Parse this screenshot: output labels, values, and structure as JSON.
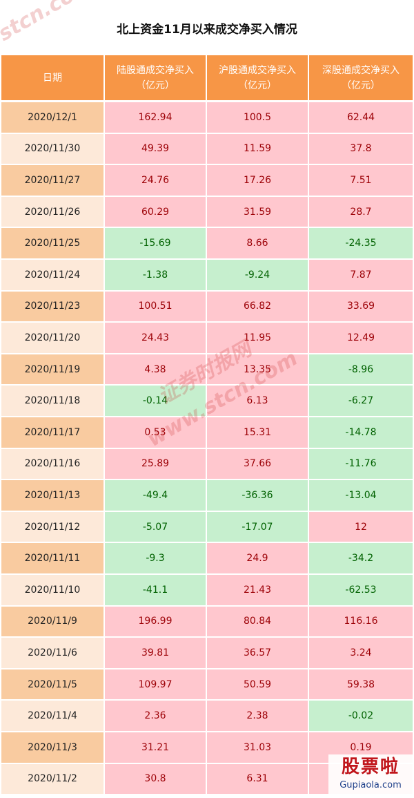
{
  "title": "北上资金11月以来成交净买入情况",
  "table": {
    "header": [
      [
        "日期"
      ],
      [
        "陆股通成交净买入",
        "（亿元）"
      ],
      [
        "沪股通成交净买入",
        "（亿元）"
      ],
      [
        "深股通成交净买入",
        "（亿元）"
      ]
    ],
    "rows": [
      [
        "2020/12/1",
        162.94,
        100.5,
        62.44
      ],
      [
        "2020/11/30",
        49.39,
        11.59,
        37.8
      ],
      [
        "2020/11/27",
        24.76,
        17.26,
        7.51
      ],
      [
        "2020/11/26",
        60.29,
        31.59,
        28.7
      ],
      [
        "2020/11/25",
        -15.69,
        8.66,
        -24.35
      ],
      [
        "2020/11/24",
        -1.38,
        -9.24,
        7.87
      ],
      [
        "2020/11/23",
        100.51,
        66.82,
        33.69
      ],
      [
        "2020/11/20",
        24.43,
        11.95,
        12.49
      ],
      [
        "2020/11/19",
        4.38,
        13.35,
        -8.96
      ],
      [
        "2020/11/18",
        -0.14,
        6.13,
        -6.27
      ],
      [
        "2020/11/17",
        0.53,
        15.31,
        -14.78
      ],
      [
        "2020/11/16",
        25.89,
        37.66,
        -11.76
      ],
      [
        "2020/11/13",
        -49.4,
        -36.36,
        -13.04
      ],
      [
        "2020/11/12",
        -5.07,
        -17.07,
        12
      ],
      [
        "2020/11/11",
        -9.3,
        24.9,
        -34.2
      ],
      [
        "2020/11/10",
        -41.1,
        21.43,
        -62.53
      ],
      [
        "2020/11/9",
        196.99,
        80.84,
        116.16
      ],
      [
        "2020/11/6",
        39.81,
        36.57,
        3.24
      ],
      [
        "2020/11/5",
        109.97,
        50.59,
        59.38
      ],
      [
        "2020/11/4",
        2.36,
        2.38,
        -0.02
      ],
      [
        "2020/11/3",
        31.21,
        31.03,
        0.19
      ],
      [
        "2020/11/2",
        30.8,
        6.31,
        null
      ]
    ]
  },
  "watermarks": [
    "stcn.com",
    "证券时报网",
    "www.stcn.com"
  ],
  "logo": {
    "text": "股票啦",
    "url": "Gupiaola.com"
  }
}
